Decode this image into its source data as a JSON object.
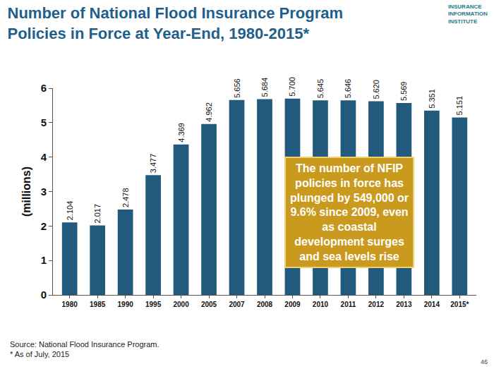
{
  "chart_data": {
    "type": "bar",
    "title": [
      "Number of National Flood Insurance Program",
      "Policies in Force at Year-End, 1980-2015*"
    ],
    "categories": [
      "1980",
      "1985",
      "1990",
      "1995",
      "2000",
      "2005",
      "2007",
      "2008",
      "2009",
      "2010",
      "2011",
      "2012",
      "2013",
      "2014",
      "2015*"
    ],
    "values": [
      2.104,
      2.017,
      2.478,
      3.477,
      4.369,
      4.962,
      5.656,
      5.684,
      5.7,
      5.645,
      5.646,
      5.62,
      5.569,
      5.351,
      5.151
    ],
    "value_labels": [
      "2.104",
      "2.017",
      "2.478",
      "3.477",
      "4.369",
      "4.962",
      "5.656",
      "5.684",
      "5.700",
      "5.645",
      "5.646",
      "5.620",
      "5.569",
      "5.351",
      "5.151"
    ],
    "color": "#215a7c",
    "ylim": [
      0,
      6
    ],
    "yticks": [
      0,
      1,
      2,
      3,
      4,
      5,
      6
    ],
    "y_label": "(millions)",
    "grid": false,
    "data_labels": true,
    "annotation_lines": [
      "The number of NFIP",
      "policies in force has",
      "plunged by 549,000 or",
      "9.6% since 2009, even",
      "as coastal",
      "development surges",
      "and sea levels rise"
    ],
    "notes": [
      "Source: National Flood Insurance Program.",
      "* As of July, 2015"
    ],
    "logo": [
      "INSURANCE",
      "INFORMATION",
      "INSTITUTE"
    ],
    "page_number": "46"
  }
}
